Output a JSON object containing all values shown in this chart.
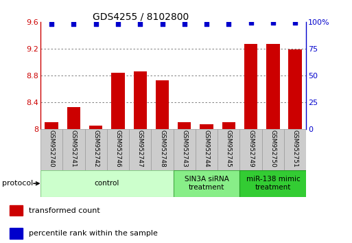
{
  "title": "GDS4255 / 8102800",
  "samples": [
    "GSM952740",
    "GSM952741",
    "GSM952742",
    "GSM952746",
    "GSM952747",
    "GSM952748",
    "GSM952743",
    "GSM952744",
    "GSM952745",
    "GSM952749",
    "GSM952750",
    "GSM952751"
  ],
  "bar_values": [
    8.1,
    8.32,
    8.05,
    8.84,
    8.86,
    8.73,
    8.1,
    8.07,
    8.1,
    9.27,
    9.27,
    9.19
  ],
  "percentile_values": [
    98,
    98,
    98,
    98,
    98,
    98,
    98,
    98,
    98,
    99,
    99,
    99
  ],
  "ylim_left": [
    8.0,
    9.6
  ],
  "ylim_right": [
    0,
    100
  ],
  "yticks_left": [
    8.0,
    8.4,
    8.8,
    9.2,
    9.6
  ],
  "ytick_labels_left": [
    "8",
    "8.4",
    "8.8",
    "9.2",
    "9.6"
  ],
  "yticks_right": [
    0,
    25,
    50,
    75,
    100
  ],
  "ytick_labels_right": [
    "0",
    "25",
    "50",
    "75",
    "100%"
  ],
  "bar_color": "#cc0000",
  "dot_color": "#0000cc",
  "groups": [
    {
      "label": "control",
      "start": 0,
      "end": 6,
      "color": "#ccffcc",
      "edge_color": "#88cc88"
    },
    {
      "label": "SIN3A siRNA\ntreatment",
      "start": 6,
      "end": 9,
      "color": "#88ee88",
      "edge_color": "#44aa44"
    },
    {
      "label": "miR-138 mimic\ntreatment",
      "start": 9,
      "end": 12,
      "color": "#33cc33",
      "edge_color": "#229922"
    }
  ],
  "protocol_label": "protocol",
  "legend_bar_label": "transformed count",
  "legend_dot_label": "percentile rank within the sample",
  "grid_color": "#666666",
  "axis_color_left": "#cc0000",
  "axis_color_right": "#0000cc",
  "bg_color": "#ffffff",
  "label_box_color": "#cccccc",
  "label_box_edge": "#999999"
}
